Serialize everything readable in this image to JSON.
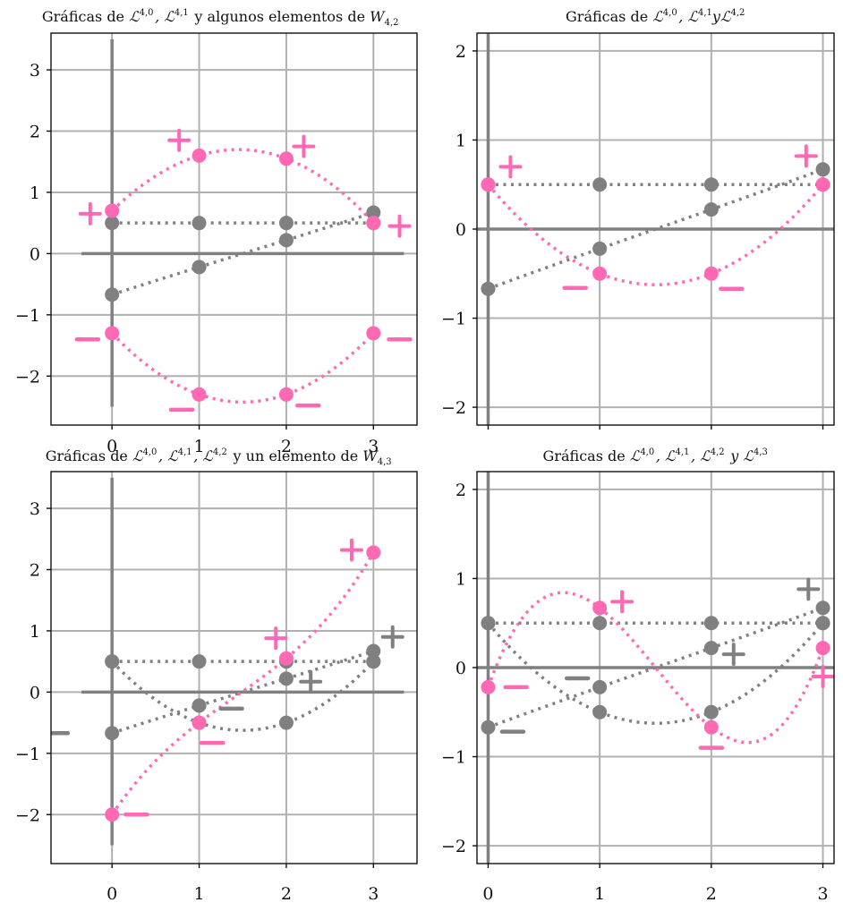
{
  "colors": {
    "pink": "#ff69b4",
    "gray": "#808080",
    "grid": "#b0b0b0"
  },
  "panels": [
    {
      "title": {
        "pre": "Gráficas de ",
        "parts": [
          [
            "ℒ",
            "4,0",
            ""
          ],
          [
            ", ℒ",
            "4,1",
            ""
          ]
        ],
        "post": " y algunos elementos de ",
        "w": [
          "W",
          "4,2"
        ]
      },
      "x_ticks": [
        "0",
        "1",
        "2",
        "3"
      ],
      "y_ticks": [
        "3",
        "2",
        "1",
        "0",
        "-1",
        "-2"
      ]
    },
    {
      "title": {
        "pre": "Gráficas de ",
        "parts": [
          [
            "ℒ",
            "4,0",
            ""
          ],
          [
            ", ℒ",
            "4,1",
            "y"
          ],
          [
            "ℒ",
            "4,2",
            ""
          ]
        ],
        "post": "",
        "w": null
      },
      "x_ticks": [],
      "y_ticks": [
        "2",
        "1",
        "0",
        "-1",
        "-2"
      ]
    },
    {
      "title": {
        "pre": "Gráficas de ",
        "parts": [
          [
            "ℒ",
            "4,0",
            ""
          ],
          [
            ", ℒ",
            "4,1",
            ""
          ],
          [
            ", ℒ",
            "4,2",
            ""
          ]
        ],
        "post": " y un elemento de ",
        "w": [
          "W",
          "4,3"
        ]
      },
      "x_ticks": [
        "0",
        "1",
        "2",
        "3"
      ],
      "y_ticks": [
        "3",
        "2",
        "1",
        "0",
        "-1",
        "-2"
      ]
    },
    {
      "title": {
        "pre": "Gráficas de ",
        "parts": [
          [
            "ℒ",
            "4,0",
            ""
          ],
          [
            ", ℒ",
            "4,1",
            ""
          ],
          [
            ", ℒ",
            "4,2",
            ""
          ],
          [
            " y ℒ",
            "4,3",
            ""
          ]
        ],
        "post": "",
        "w": null
      },
      "x_ticks": [
        "0",
        "1",
        "2",
        "3"
      ],
      "y_ticks": [
        "2",
        "1",
        "0",
        "-1",
        "-2"
      ]
    }
  ],
  "chart_data": [
    {
      "type": "scatter",
      "title": "Gráficas de ℒ4,0, ℒ4,1 y algunos elementos de W4,2",
      "xlim": [
        -0.7,
        3.5
      ],
      "ylim": [
        -2.8,
        3.6
      ],
      "grid": true,
      "series": [
        {
          "color": "gray",
          "x": [
            0,
            1,
            2,
            3
          ],
          "y": [
            0.5,
            0.5,
            0.5,
            0.5
          ]
        },
        {
          "color": "gray",
          "x": [
            0,
            1,
            2,
            3
          ],
          "y": [
            -0.67,
            -0.22,
            0.22,
            0.67
          ]
        },
        {
          "color": "pink",
          "x": [
            0,
            1,
            2,
            3
          ],
          "y": [
            0.7,
            1.6,
            1.55,
            0.5
          ]
        },
        {
          "color": "pink",
          "x": [
            0,
            1,
            2,
            3
          ],
          "y": [
            -1.3,
            -2.3,
            -2.3,
            -1.3
          ]
        }
      ],
      "sign_marks": [
        {
          "sign": "+",
          "x": -0.25,
          "y": 0.65,
          "color": "pink"
        },
        {
          "sign": "+",
          "x": 0.77,
          "y": 1.85,
          "color": "pink"
        },
        {
          "sign": "+",
          "x": 2.2,
          "y": 1.75,
          "color": "pink"
        },
        {
          "sign": "+",
          "x": 3.3,
          "y": 0.45,
          "color": "pink"
        },
        {
          "sign": "−",
          "x": -0.28,
          "y": -1.4,
          "color": "pink"
        },
        {
          "sign": "−",
          "x": 0.8,
          "y": -2.55,
          "color": "pink"
        },
        {
          "sign": "−",
          "x": 2.25,
          "y": -2.48,
          "color": "pink"
        },
        {
          "sign": "−",
          "x": 3.3,
          "y": -1.4,
          "color": "pink"
        }
      ]
    },
    {
      "type": "scatter",
      "title": "Gráficas de ℒ4,0, ℒ4,1yℒ4,2",
      "xlim": [
        -0.1,
        3.1
      ],
      "ylim": [
        -2.2,
        2.2
      ],
      "grid": true,
      "series": [
        {
          "color": "gray",
          "x": [
            0,
            1,
            2,
            3
          ],
          "y": [
            0.5,
            0.5,
            0.5,
            0.5
          ]
        },
        {
          "color": "gray",
          "x": [
            0,
            1,
            2,
            3
          ],
          "y": [
            -0.67,
            -0.22,
            0.22,
            0.67
          ]
        },
        {
          "color": "pink",
          "x": [
            0,
            1,
            2,
            3
          ],
          "y": [
            0.5,
            -0.5,
            -0.5,
            0.5
          ]
        }
      ],
      "sign_marks": [
        {
          "sign": "+",
          "x": 0.2,
          "y": 0.7,
          "color": "pink"
        },
        {
          "sign": "+",
          "x": 2.85,
          "y": 0.82,
          "color": "pink"
        },
        {
          "sign": "−",
          "x": 0.78,
          "y": -0.66,
          "color": "pink"
        },
        {
          "sign": "−",
          "x": 2.18,
          "y": -0.67,
          "color": "pink"
        }
      ]
    },
    {
      "type": "scatter",
      "title": "Gráficas de ℒ4,0, ℒ4,1, ℒ4,2 y un elemento de W4,3",
      "xlim": [
        -0.7,
        3.5
      ],
      "ylim": [
        -2.8,
        3.6
      ],
      "grid": true,
      "series": [
        {
          "color": "gray",
          "x": [
            0,
            1,
            2,
            3
          ],
          "y": [
            0.5,
            0.5,
            0.5,
            0.5
          ]
        },
        {
          "color": "gray",
          "x": [
            0,
            1,
            2,
            3
          ],
          "y": [
            -0.67,
            -0.22,
            0.22,
            0.67
          ]
        },
        {
          "color": "gray",
          "x": [
            0,
            1,
            2,
            3
          ],
          "y": [
            0.5,
            -0.5,
            -0.5,
            0.5
          ]
        },
        {
          "color": "pink",
          "x": [
            0,
            1,
            2,
            3
          ],
          "y": [
            -2.0,
            -0.5,
            0.55,
            2.28
          ]
        }
      ],
      "sign_marks": [
        {
          "sign": "+",
          "x": 2.75,
          "y": 2.32,
          "color": "pink"
        },
        {
          "sign": "+",
          "x": 1.88,
          "y": 0.88,
          "color": "pink"
        },
        {
          "sign": "+",
          "x": 2.28,
          "y": 0.17,
          "color": "gray"
        },
        {
          "sign": "+",
          "x": 3.22,
          "y": 0.9,
          "color": "gray"
        },
        {
          "sign": "−",
          "x": 0.28,
          "y": -2.0,
          "color": "pink"
        },
        {
          "sign": "−",
          "x": 1.15,
          "y": -0.83,
          "color": "pink"
        },
        {
          "sign": "−",
          "x": -0.63,
          "y": -0.67,
          "color": "gray"
        },
        {
          "sign": "−",
          "x": 1.37,
          "y": -0.27,
          "color": "gray"
        }
      ]
    },
    {
      "type": "scatter",
      "title": "Gráficas de ℒ4,0, ℒ4,1, ℒ4,2 y ℒ4,3",
      "xlim": [
        -0.1,
        3.1
      ],
      "ylim": [
        -2.2,
        2.2
      ],
      "grid": true,
      "series": [
        {
          "color": "gray",
          "x": [
            0,
            1,
            2,
            3
          ],
          "y": [
            0.5,
            0.5,
            0.5,
            0.5
          ]
        },
        {
          "color": "gray",
          "x": [
            0,
            1,
            2,
            3
          ],
          "y": [
            -0.67,
            -0.22,
            0.22,
            0.67
          ]
        },
        {
          "color": "gray",
          "x": [
            0,
            1,
            2,
            3
          ],
          "y": [
            0.5,
            -0.5,
            -0.5,
            0.5
          ]
        },
        {
          "color": "pink",
          "x": [
            0,
            1,
            2,
            3
          ],
          "y": [
            -0.22,
            0.67,
            -0.67,
            0.22
          ]
        }
      ],
      "sign_marks": [
        {
          "sign": "+",
          "x": 1.2,
          "y": 0.74,
          "color": "pink"
        },
        {
          "sign": "+",
          "x": 3.0,
          "y": -0.1,
          "color": "pink"
        },
        {
          "sign": "+",
          "x": 2.2,
          "y": 0.15,
          "color": "gray"
        },
        {
          "sign": "+",
          "x": 2.87,
          "y": 0.88,
          "color": "gray"
        },
        {
          "sign": "−",
          "x": 0.25,
          "y": -0.22,
          "color": "pink"
        },
        {
          "sign": "−",
          "x": 2.0,
          "y": -0.9,
          "color": "pink"
        },
        {
          "sign": "−",
          "x": 0.22,
          "y": -0.72,
          "color": "gray"
        },
        {
          "sign": "−",
          "x": 0.8,
          "y": -0.12,
          "color": "gray"
        }
      ]
    }
  ]
}
